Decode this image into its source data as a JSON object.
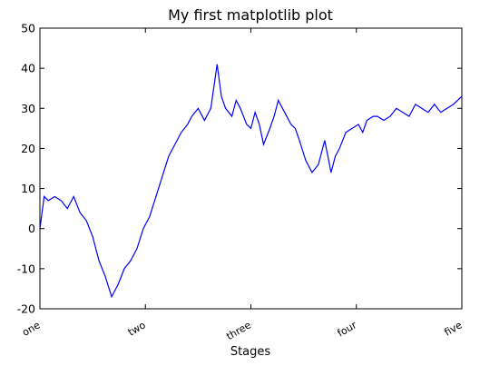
{
  "chart_data": {
    "type": "line",
    "title": "My first matplotlib plot",
    "xlabel": "Stages",
    "ylabel": "",
    "xlim": [
      0,
      1000
    ],
    "ylim": [
      -20,
      50
    ],
    "grid": false,
    "yticks": [
      -20,
      -10,
      0,
      10,
      20,
      30,
      40,
      50
    ],
    "xticks": [
      0,
      250,
      500,
      750,
      1000
    ],
    "xticklabels": [
      "one",
      "two",
      "three",
      "four",
      "five"
    ],
    "line_color": "#0000ff",
    "series": [
      {
        "x": [
          0,
          10,
          20,
          35,
          50,
          65,
          80,
          95,
          110,
          125,
          140,
          155,
          170,
          185,
          200,
          215,
          230,
          245,
          260,
          275,
          290,
          305,
          320,
          335,
          350,
          360,
          375,
          390,
          405,
          420,
          430,
          440,
          455,
          465,
          475,
          490,
          500,
          510,
          520,
          530,
          545,
          555,
          565,
          580,
          595,
          605,
          615,
          630,
          645,
          660,
          675,
          690,
          700,
          710,
          725,
          740,
          755,
          765,
          775,
          790,
          800,
          815,
          830,
          845,
          860,
          875,
          890,
          905,
          920,
          935,
          950,
          965,
          980,
          990,
          1000
        ],
        "values": [
          0,
          8,
          7,
          8,
          7,
          5,
          8,
          4,
          2,
          -2,
          -8,
          -12,
          -17,
          -14,
          -10,
          -8,
          -5,
          0,
          3,
          8,
          13,
          18,
          21,
          24,
          26,
          28,
          30,
          27,
          30,
          41,
          33,
          30,
          28,
          32,
          30,
          26,
          25,
          29,
          26,
          21,
          25,
          28,
          32,
          29,
          26,
          25,
          22,
          17,
          14,
          16,
          22,
          14,
          18,
          20,
          24,
          25,
          26,
          24,
          27,
          28,
          28,
          27,
          28,
          30,
          29,
          28,
          31,
          30,
          29,
          31,
          29,
          30,
          31,
          32,
          33
        ]
      }
    ]
  }
}
